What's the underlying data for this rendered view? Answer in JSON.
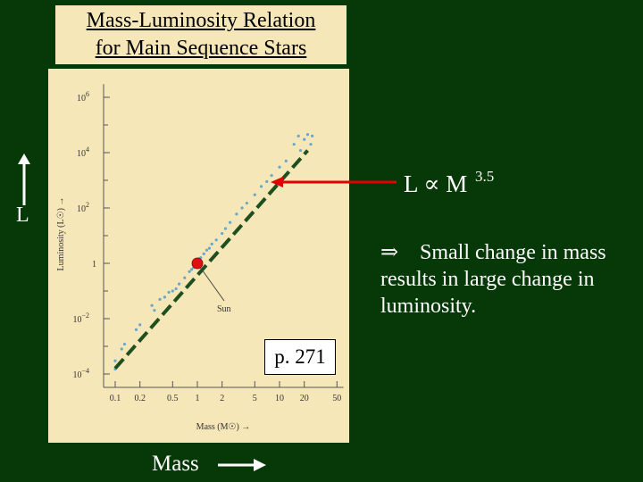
{
  "title_line1": "Mass-Luminosity Relation",
  "title_line2": "for Main Sequence Stars",
  "relation": {
    "lhs": "L",
    "symbol": "∝",
    "rhs": "M",
    "exponent": "3.5"
  },
  "side_label": "L",
  "note": {
    "implies": "⇒",
    "text": "Small change in mass results in large change in luminosity."
  },
  "page_ref": "p. 271",
  "mass_label": "Mass",
  "colors": {
    "background": "#073807",
    "panel": "#f6e7b8",
    "arrow": "#e00000",
    "sun": "#e01010",
    "fit_line": "#1f4f1f",
    "points": "#6aa6c8"
  },
  "chart_data": {
    "type": "scatter",
    "xlabel": "Mass (M☉)",
    "ylabel": "Luminosity (L☉)",
    "x_scale": "log",
    "y_scale": "log",
    "xlim": [
      0.06,
      60
    ],
    "ylim": [
      2e-05,
      3000000
    ],
    "x_ticks": [
      0.1,
      0.2,
      0.5,
      1,
      2,
      5,
      10,
      20,
      50
    ],
    "x_tick_labels": [
      "0.1",
      "0.2",
      "0.5",
      "1",
      "2",
      "5",
      "10",
      "20",
      "50"
    ],
    "y_ticks": [
      0.0001,
      0.01,
      1,
      100,
      10000,
      1000000
    ],
    "y_tick_labels": [
      [
        "10",
        "−4"
      ],
      [
        "10",
        "−2"
      ],
      [
        "1",
        ""
      ],
      [
        "10",
        "2"
      ],
      [
        "10",
        "4"
      ],
      [
        "10",
        "6"
      ]
    ],
    "fit_line": {
      "label": "L ∝ M^3.5",
      "from": {
        "mass": 0.1,
        "lum": 0.00016
      },
      "to": {
        "mass": 22,
        "lum": 12000
      }
    },
    "sun": {
      "label": "Sun",
      "mass": 1,
      "lum": 1
    },
    "points": [
      {
        "m": 0.1,
        "l": 0.00015
      },
      {
        "m": 0.1,
        "l": 0.0003
      },
      {
        "m": 0.12,
        "l": 0.0008
      },
      {
        "m": 0.13,
        "l": 0.0012
      },
      {
        "m": 0.18,
        "l": 0.004
      },
      {
        "m": 0.2,
        "l": 0.006
      },
      {
        "m": 0.28,
        "l": 0.03
      },
      {
        "m": 0.3,
        "l": 0.02
      },
      {
        "m": 0.35,
        "l": 0.05
      },
      {
        "m": 0.4,
        "l": 0.06
      },
      {
        "m": 0.45,
        "l": 0.09
      },
      {
        "m": 0.5,
        "l": 0.1
      },
      {
        "m": 0.55,
        "l": 0.12
      },
      {
        "m": 0.6,
        "l": 0.18
      },
      {
        "m": 0.7,
        "l": 0.3
      },
      {
        "m": 0.8,
        "l": 0.5
      },
      {
        "m": 0.85,
        "l": 0.6
      },
      {
        "m": 0.9,
        "l": 0.7
      },
      {
        "m": 0.95,
        "l": 0.9
      },
      {
        "m": 1.0,
        "l": 1.3
      },
      {
        "m": 1.05,
        "l": 1.5
      },
      {
        "m": 1.1,
        "l": 1.6
      },
      {
        "m": 1.2,
        "l": 2.2
      },
      {
        "m": 1.3,
        "l": 3
      },
      {
        "m": 1.4,
        "l": 3.5
      },
      {
        "m": 1.5,
        "l": 5
      },
      {
        "m": 1.7,
        "l": 7
      },
      {
        "m": 2.0,
        "l": 12
      },
      {
        "m": 2.2,
        "l": 18
      },
      {
        "m": 2.5,
        "l": 30
      },
      {
        "m": 3.0,
        "l": 60
      },
      {
        "m": 3.5,
        "l": 100
      },
      {
        "m": 4.0,
        "l": 150
      },
      {
        "m": 5.0,
        "l": 300
      },
      {
        "m": 6.0,
        "l": 600
      },
      {
        "m": 7.0,
        "l": 900
      },
      {
        "m": 8.0,
        "l": 1500
      },
      {
        "m": 10,
        "l": 3000
      },
      {
        "m": 12,
        "l": 5000
      },
      {
        "m": 15,
        "l": 20000
      },
      {
        "m": 17,
        "l": 40000
      },
      {
        "m": 18,
        "l": 12000
      },
      {
        "m": 20,
        "l": 30000
      },
      {
        "m": 22,
        "l": 45000
      },
      {
        "m": 24,
        "l": 20000
      },
      {
        "m": 25,
        "l": 40000
      }
    ]
  }
}
